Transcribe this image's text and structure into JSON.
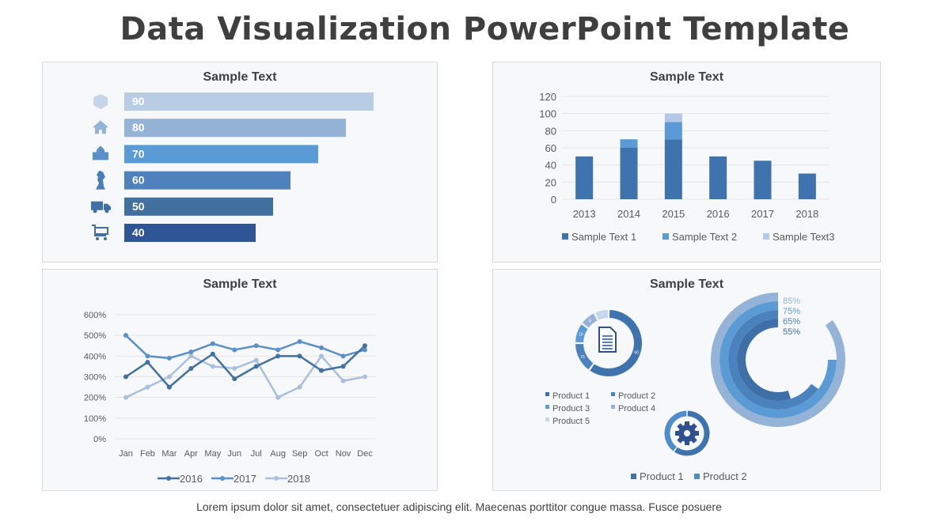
{
  "title": "Data Visualization PowerPoint Template",
  "footer": "Lorem ipsum dolor sit amet, consectetuer adipiscing elit. Maecenas porttitor congue massa. Fusce posuere",
  "panels": {
    "bars": {
      "title": "Sample Text",
      "items": [
        {
          "icon": "box-icon",
          "value": 90,
          "color": "#b8cce4"
        },
        {
          "icon": "house-icon",
          "value": 80,
          "color": "#95b3d7"
        },
        {
          "icon": "school-icon",
          "value": 70,
          "color": "#5b9bd5"
        },
        {
          "icon": "chess-knight-icon",
          "value": 60,
          "color": "#4f81bd"
        },
        {
          "icon": "truck-icon",
          "value": 50,
          "color": "#41709f"
        },
        {
          "icon": "cart-icon",
          "value": 40,
          "color": "#2f5597"
        }
      ]
    },
    "line": {
      "title": "Sample Text"
    },
    "donuts": {
      "title": "Sample Text"
    }
  },
  "chart_data": [
    {
      "type": "bar",
      "title": "Sample Text",
      "stacked": true,
      "categories": [
        "2013",
        "2014",
        "2015",
        "2016",
        "2017",
        "2018"
      ],
      "series": [
        {
          "name": "Sample Text 1",
          "values": [
            50,
            60,
            70,
            50,
            45,
            30
          ],
          "color": "#3e73ae"
        },
        {
          "name": "Sample Text 2",
          "values": [
            0,
            10,
            20,
            0,
            0,
            0
          ],
          "color": "#5b9bd5"
        },
        {
          "name": "Sample Text3",
          "values": [
            0,
            0,
            10,
            0,
            0,
            0
          ],
          "color": "#b4c7e7"
        }
      ],
      "ylim": [
        0,
        120
      ],
      "yticks": [
        "0",
        "20",
        "40",
        "60",
        "80",
        "100",
        "120"
      ],
      "grid": true,
      "legend": "bottom"
    },
    {
      "type": "line",
      "title": "Sample Text",
      "categories": [
        "Jan",
        "Feb",
        "Mar",
        "Apr",
        "May",
        "Jun",
        "Jul",
        "Aug",
        "Sep",
        "Oct",
        "Nov",
        "Dec"
      ],
      "series": [
        {
          "name": "2016",
          "values": [
            300,
            370,
            250,
            340,
            410,
            290,
            350,
            400,
            400,
            330,
            350,
            450
          ],
          "color": "#41719c"
        },
        {
          "name": "2017",
          "values": [
            500,
            400,
            390,
            420,
            460,
            430,
            450,
            430,
            470,
            440,
            400,
            430
          ],
          "color": "#5b8fc7"
        },
        {
          "name": "2018",
          "values": [
            200,
            250,
            300,
            400,
            350,
            340,
            380,
            200,
            250,
            400,
            280,
            300
          ],
          "color": "#a9bfdc"
        }
      ],
      "ylim": [
        0,
        600
      ],
      "yticks": [
        "0%",
        "100%",
        "200%",
        "300%",
        "400%",
        "500%",
        "600%"
      ],
      "grid": true,
      "legend": "bottom"
    },
    {
      "type": "pie",
      "subtype": "donut",
      "icon": "document-icon",
      "categories": [
        "Product 1",
        "Product 2",
        "Product 3",
        "Product 4",
        "Product 5"
      ],
      "values": [
        60,
        15,
        10,
        8,
        7
      ],
      "labels": [
        "60",
        "15",
        "10",
        "8",
        "7"
      ],
      "colors": [
        "#3e73ae",
        "#4a82be",
        "#5b9bd5",
        "#95b3d7",
        "#c5d5ea"
      ],
      "legend": "bottom"
    },
    {
      "type": "pie",
      "subtype": "donut",
      "icon": "gear-icon",
      "categories": [
        "Product 1",
        "Product 2"
      ],
      "values": [
        60,
        40
      ],
      "colors": [
        "#3e73ae",
        "#4f8cc9"
      ],
      "legend": "bottom"
    },
    {
      "type": "bar",
      "subtype": "radial",
      "values": [
        55,
        65,
        75,
        85
      ],
      "labels": [
        "55%",
        "65%",
        "75%",
        "85%"
      ],
      "colors": [
        "#3e6fa6",
        "#4a82be",
        "#5b9bd5",
        "#95b3d7"
      ]
    }
  ]
}
